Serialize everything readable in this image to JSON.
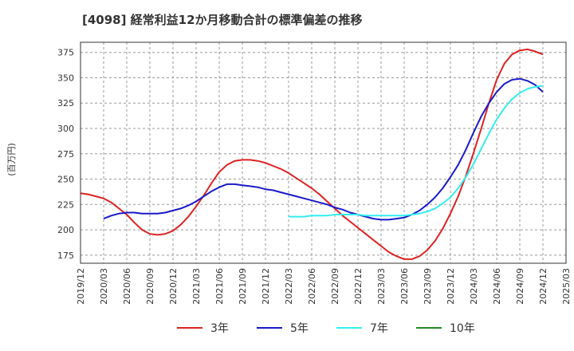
{
  "chart_data": {
    "type": "line",
    "title": "[4098]  経常利益12か月移動合計の標準偏差の推移",
    "ylabel": "(百万円)",
    "xlabel": "",
    "ylim": [
      167,
      385
    ],
    "x_range": [
      "2019-12",
      "2025-03"
    ],
    "y_ticks": [
      175,
      200,
      225,
      250,
      275,
      300,
      325,
      350,
      375
    ],
    "x_ticks": [
      "2019/12",
      "2020/03",
      "2020/06",
      "2020/09",
      "2020/12",
      "2021/03",
      "2021/06",
      "2021/09",
      "2021/12",
      "2022/03",
      "2022/06",
      "2022/09",
      "2022/12",
      "2023/03",
      "2023/06",
      "2023/09",
      "2023/12",
      "2024/03",
      "2024/06",
      "2024/09",
      "2024/12",
      "2025/03"
    ],
    "grid": true,
    "legend_position": "bottom",
    "series": [
      {
        "name": "3年",
        "color": "#dd2222",
        "points": [
          [
            "2019-12",
            236
          ],
          [
            "2020-01",
            235
          ],
          [
            "2020-02",
            233
          ],
          [
            "2020-03",
            231
          ],
          [
            "2020-04",
            227
          ],
          [
            "2020-05",
            221
          ],
          [
            "2020-06",
            215
          ],
          [
            "2020-07",
            207
          ],
          [
            "2020-08",
            200
          ],
          [
            "2020-09",
            196
          ],
          [
            "2020-10",
            195
          ],
          [
            "2020-11",
            196
          ],
          [
            "2020-12",
            199
          ],
          [
            "2021-01",
            205
          ],
          [
            "2021-02",
            213
          ],
          [
            "2021-03",
            223
          ],
          [
            "2021-04",
            234
          ],
          [
            "2021-05",
            246
          ],
          [
            "2021-06",
            257
          ],
          [
            "2021-07",
            264
          ],
          [
            "2021-08",
            268
          ],
          [
            "2021-09",
            269
          ],
          [
            "2021-10",
            269
          ],
          [
            "2021-11",
            268
          ],
          [
            "2021-12",
            266
          ],
          [
            "2022-01",
            263
          ],
          [
            "2022-02",
            260
          ],
          [
            "2022-03",
            256
          ],
          [
            "2022-04",
            251
          ],
          [
            "2022-05",
            246
          ],
          [
            "2022-06",
            241
          ],
          [
            "2022-07",
            235
          ],
          [
            "2022-08",
            228
          ],
          [
            "2022-09",
            221
          ],
          [
            "2022-10",
            214
          ],
          [
            "2022-11",
            208
          ],
          [
            "2022-12",
            202
          ],
          [
            "2023-01",
            196
          ],
          [
            "2023-02",
            190
          ],
          [
            "2023-03",
            184
          ],
          [
            "2023-04",
            178
          ],
          [
            "2023-05",
            174
          ],
          [
            "2023-06",
            171
          ],
          [
            "2023-07",
            171
          ],
          [
            "2023-08",
            174
          ],
          [
            "2023-09",
            180
          ],
          [
            "2023-10",
            189
          ],
          [
            "2023-11",
            201
          ],
          [
            "2023-12",
            216
          ],
          [
            "2024-01",
            233
          ],
          [
            "2024-02",
            253
          ],
          [
            "2024-03",
            276
          ],
          [
            "2024-04",
            300
          ],
          [
            "2024-05",
            325
          ],
          [
            "2024-06",
            348
          ],
          [
            "2024-07",
            364
          ],
          [
            "2024-08",
            373
          ],
          [
            "2024-09",
            377
          ],
          [
            "2024-10",
            378
          ],
          [
            "2024-11",
            376
          ],
          [
            "2024-12",
            373
          ]
        ]
      },
      {
        "name": "5年",
        "color": "#1a1ac8",
        "points": [
          [
            "2020-03",
            211
          ],
          [
            "2020-04",
            214
          ],
          [
            "2020-05",
            216
          ],
          [
            "2020-06",
            217
          ],
          [
            "2020-07",
            217
          ],
          [
            "2020-08",
            216
          ],
          [
            "2020-09",
            216
          ],
          [
            "2020-10",
            216
          ],
          [
            "2020-11",
            217
          ],
          [
            "2020-12",
            219
          ],
          [
            "2021-01",
            221
          ],
          [
            "2021-02",
            224
          ],
          [
            "2021-03",
            228
          ],
          [
            "2021-04",
            233
          ],
          [
            "2021-05",
            238
          ],
          [
            "2021-06",
            242
          ],
          [
            "2021-07",
            245
          ],
          [
            "2021-08",
            245
          ],
          [
            "2021-09",
            244
          ],
          [
            "2021-10",
            243
          ],
          [
            "2021-11",
            242
          ],
          [
            "2021-12",
            240
          ],
          [
            "2022-01",
            239
          ],
          [
            "2022-02",
            237
          ],
          [
            "2022-03",
            235
          ],
          [
            "2022-04",
            233
          ],
          [
            "2022-05",
            231
          ],
          [
            "2022-06",
            229
          ],
          [
            "2022-07",
            227
          ],
          [
            "2022-08",
            225
          ],
          [
            "2022-09",
            222
          ],
          [
            "2022-10",
            220
          ],
          [
            "2022-11",
            217
          ],
          [
            "2022-12",
            215
          ],
          [
            "2023-01",
            213
          ],
          [
            "2023-02",
            211
          ],
          [
            "2023-03",
            210
          ],
          [
            "2023-04",
            210
          ],
          [
            "2023-05",
            211
          ],
          [
            "2023-06",
            212
          ],
          [
            "2023-07",
            215
          ],
          [
            "2023-08",
            219
          ],
          [
            "2023-09",
            225
          ],
          [
            "2023-10",
            232
          ],
          [
            "2023-11",
            241
          ],
          [
            "2023-12",
            252
          ],
          [
            "2024-01",
            264
          ],
          [
            "2024-02",
            279
          ],
          [
            "2024-03",
            296
          ],
          [
            "2024-04",
            312
          ],
          [
            "2024-05",
            325
          ],
          [
            "2024-06",
            336
          ],
          [
            "2024-07",
            344
          ],
          [
            "2024-08",
            348
          ],
          [
            "2024-09",
            349
          ],
          [
            "2024-10",
            347
          ],
          [
            "2024-11",
            343
          ],
          [
            "2024-12",
            336
          ]
        ]
      },
      {
        "name": "7年",
        "color": "#33eeee",
        "points": [
          [
            "2022-03",
            213
          ],
          [
            "2022-04",
            213
          ],
          [
            "2022-05",
            213
          ],
          [
            "2022-06",
            214
          ],
          [
            "2022-07",
            214
          ],
          [
            "2022-08",
            214
          ],
          [
            "2022-09",
            215
          ],
          [
            "2022-10",
            215
          ],
          [
            "2022-11",
            215
          ],
          [
            "2022-12",
            215
          ],
          [
            "2023-01",
            214
          ],
          [
            "2023-02",
            214
          ],
          [
            "2023-03",
            214
          ],
          [
            "2023-04",
            214
          ],
          [
            "2023-05",
            214
          ],
          [
            "2023-06",
            214
          ],
          [
            "2023-07",
            215
          ],
          [
            "2023-08",
            216
          ],
          [
            "2023-09",
            218
          ],
          [
            "2023-10",
            221
          ],
          [
            "2023-11",
            226
          ],
          [
            "2023-12",
            232
          ],
          [
            "2024-01",
            241
          ],
          [
            "2024-02",
            252
          ],
          [
            "2024-03",
            265
          ],
          [
            "2024-04",
            280
          ],
          [
            "2024-05",
            295
          ],
          [
            "2024-06",
            309
          ],
          [
            "2024-07",
            320
          ],
          [
            "2024-08",
            329
          ],
          [
            "2024-09",
            335
          ],
          [
            "2024-10",
            339
          ],
          [
            "2024-11",
            341
          ],
          [
            "2024-12",
            342
          ]
        ]
      },
      {
        "name": "10年",
        "color": "#228822",
        "points": []
      }
    ]
  }
}
